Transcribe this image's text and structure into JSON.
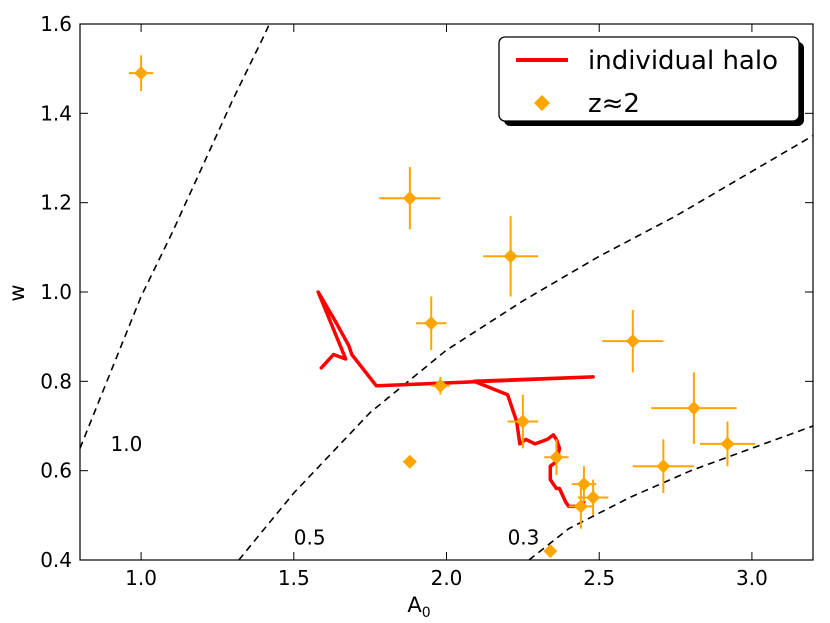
{
  "chart_data": {
    "type": "scatter",
    "title": "",
    "xlabel": "A",
    "xlabel_subscript": "0",
    "ylabel": "w",
    "xlim": [
      0.8,
      3.2
    ],
    "ylim": [
      0.4,
      1.6
    ],
    "xticks": [
      1.0,
      1.5,
      2.0,
      2.5,
      3.0
    ],
    "xtick_labels": [
      "1.0",
      "1.5",
      "2.0",
      "2.5",
      "3.0"
    ],
    "yticks": [
      0.4,
      0.6,
      0.8,
      1.0,
      1.2,
      1.4,
      1.6
    ],
    "ytick_labels": [
      "0.4",
      "0.6",
      "0.8",
      "1.0",
      "1.2",
      "1.4",
      "1.6"
    ],
    "grid": false,
    "legend_position": "top-right",
    "colors": {
      "line": "#ff0000",
      "points": "#ffa500",
      "curves": "#000000"
    },
    "series": [
      {
        "name": "individual halo",
        "kind": "line",
        "x": [
          1.59,
          1.63,
          1.67,
          1.58,
          1.64,
          1.68,
          1.69,
          1.77,
          2.48,
          2.09,
          2.2,
          2.23,
          2.24,
          2.26,
          2.29,
          2.33,
          2.35,
          2.36,
          2.37,
          2.36,
          2.34,
          2.34,
          2.36,
          2.37,
          2.39,
          2.4,
          2.43,
          2.45
        ],
        "y": [
          0.83,
          0.86,
          0.85,
          1.0,
          0.93,
          0.88,
          0.86,
          0.79,
          0.81,
          0.8,
          0.77,
          0.71,
          0.66,
          0.67,
          0.66,
          0.67,
          0.68,
          0.67,
          0.65,
          0.62,
          0.61,
          0.58,
          0.56,
          0.56,
          0.53,
          0.52,
          0.52,
          0.53
        ]
      },
      {
        "name": "z≈2",
        "kind": "scatter_errorbar",
        "points": [
          {
            "x": 1.0,
            "y": 1.49,
            "xerr": 0.04,
            "yerr": 0.04
          },
          {
            "x": 1.88,
            "y": 1.21,
            "xerr": 0.1,
            "yerr": 0.07
          },
          {
            "x": 2.21,
            "y": 1.08,
            "xerr": 0.09,
            "yerr": 0.09
          },
          {
            "x": 1.95,
            "y": 0.93,
            "xerr": 0.05,
            "yerr": 0.06
          },
          {
            "x": 2.61,
            "y": 0.89,
            "xerr": 0.1,
            "yerr": 0.07
          },
          {
            "x": 1.98,
            "y": 0.79,
            "xerr": 0.03,
            "yerr": 0.02
          },
          {
            "x": 2.81,
            "y": 0.74,
            "xerr": 0.14,
            "yerr": 0.08
          },
          {
            "x": 2.25,
            "y": 0.71,
            "xerr": 0.05,
            "yerr": 0.06
          },
          {
            "x": 2.36,
            "y": 0.63,
            "xerr": 0.04,
            "yerr": 0.04
          },
          {
            "x": 2.71,
            "y": 0.61,
            "xerr": 0.1,
            "yerr": 0.06
          },
          {
            "x": 2.92,
            "y": 0.66,
            "xerr": 0.09,
            "yerr": 0.05
          },
          {
            "x": 1.88,
            "y": 0.62,
            "xerr": 0.02,
            "yerr": 0.01
          },
          {
            "x": 2.45,
            "y": 0.57,
            "xerr": 0.04,
            "yerr": 0.04
          },
          {
            "x": 2.48,
            "y": 0.54,
            "xerr": 0.05,
            "yerr": 0.04
          },
          {
            "x": 2.44,
            "y": 0.52,
            "xerr": 0.04,
            "yerr": 0.05
          },
          {
            "x": 2.34,
            "y": 0.42,
            "xerr": 0.02,
            "yerr": 0.0
          }
        ]
      }
    ],
    "reference_curves": [
      {
        "label": "1.0",
        "label_at": {
          "x": 0.9,
          "y": 0.66
        },
        "x": [
          0.8,
          0.9,
          1.0,
          1.1,
          1.2,
          1.3,
          1.4,
          1.42
        ],
        "y": [
          0.65,
          0.82,
          0.99,
          1.13,
          1.28,
          1.43,
          1.57,
          1.6
        ]
      },
      {
        "label": "0.5",
        "label_at": {
          "x": 1.5,
          "y": 0.45
        },
        "x": [
          1.32,
          1.5,
          1.75,
          2.0,
          2.25,
          2.5,
          2.75,
          3.0,
          3.2
        ],
        "y": [
          0.4,
          0.55,
          0.73,
          0.87,
          0.98,
          1.08,
          1.17,
          1.27,
          1.35
        ]
      },
      {
        "label": "0.3",
        "label_at": {
          "x": 2.2,
          "y": 0.45
        },
        "x": [
          2.27,
          2.4,
          2.6,
          2.8,
          3.0,
          3.2
        ],
        "y": [
          0.4,
          0.47,
          0.54,
          0.6,
          0.65,
          0.7
        ]
      }
    ]
  }
}
